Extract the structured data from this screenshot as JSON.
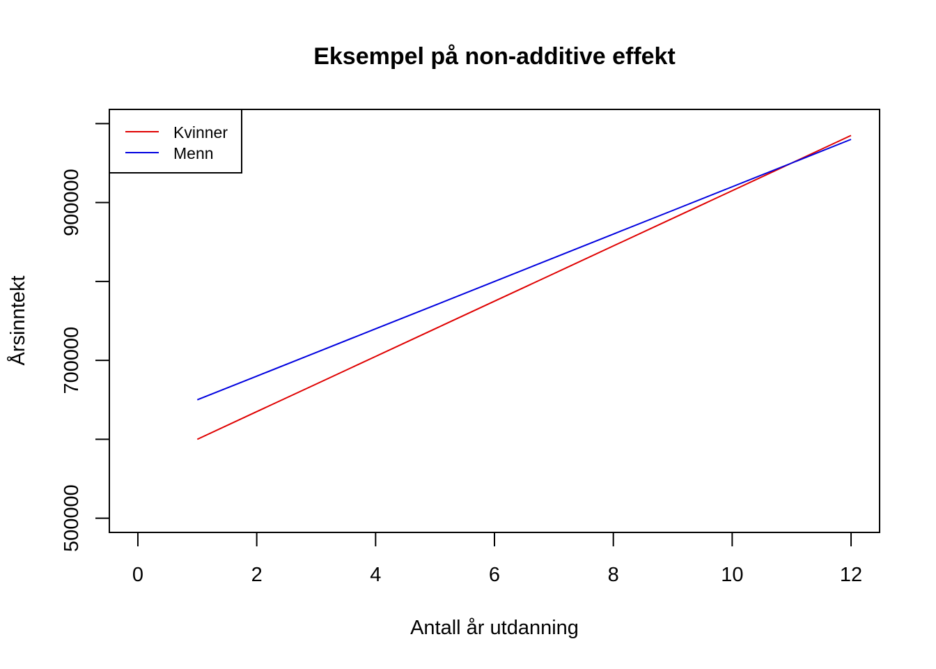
{
  "chart_data": {
    "type": "line",
    "title": "Eksempel på non-additive effekt",
    "xlabel": "Antall år utdanning",
    "ylabel": "Årsinntekt",
    "xlim": [
      -0.48,
      12.48
    ],
    "ylim": [
      482000,
      1018000
    ],
    "x_ticks": [
      0,
      2,
      4,
      6,
      8,
      10,
      12
    ],
    "x_tick_labels": [
      "0",
      "2",
      "4",
      "6",
      "8",
      "10",
      "12"
    ],
    "y_ticks": [
      500000,
      600000,
      700000,
      800000,
      900000,
      1000000
    ],
    "y_tick_labels": [
      "500000",
      "",
      "700000",
      "",
      "900000",
      ""
    ],
    "grid": false,
    "legend_position": "top-left",
    "series": [
      {
        "name": "Kvinner",
        "color": "#DF0000",
        "x": [
          1,
          2,
          3,
          4,
          5,
          6,
          7,
          8,
          9,
          10,
          11,
          12
        ],
        "y": [
          600000,
          635000,
          670000,
          705000,
          740000,
          775000,
          810000,
          845000,
          880000,
          915000,
          950000,
          985000
        ]
      },
      {
        "name": "Menn",
        "color": "#0000DF",
        "x": [
          1,
          2,
          3,
          4,
          5,
          6,
          7,
          8,
          9,
          10,
          11,
          12
        ],
        "y": [
          650000,
          680000,
          710000,
          740000,
          770000,
          800000,
          830000,
          860000,
          890000,
          920000,
          950000,
          980000
        ]
      }
    ]
  }
}
